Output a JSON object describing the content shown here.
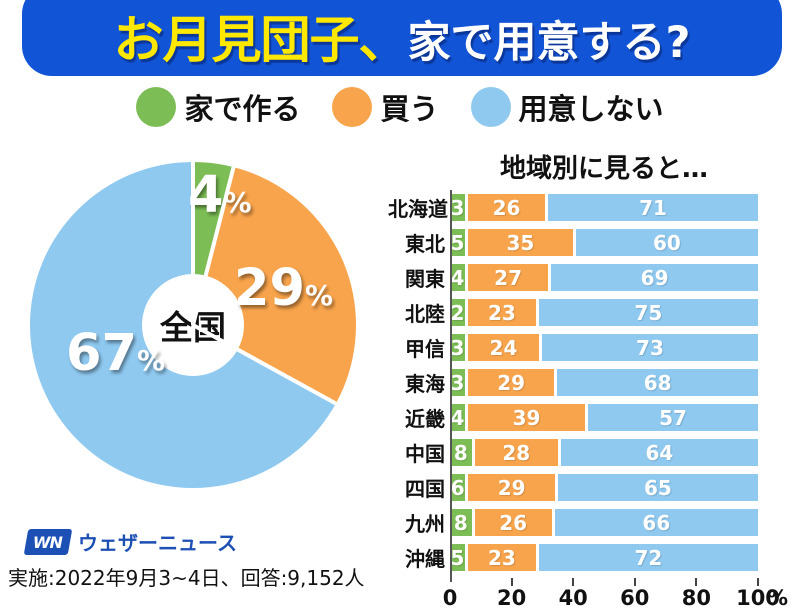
{
  "title": {
    "highlight": "お月見団子、",
    "rest": "家で用意する?"
  },
  "legend": [
    {
      "label": "家で作る",
      "color": "#7CBE55"
    },
    {
      "label": "買う",
      "color": "#F8A44C"
    },
    {
      "label": "用意しない",
      "color": "#8FC9F0"
    }
  ],
  "pie_center_label": "全国",
  "chart_data": [
    {
      "type": "pie",
      "title": "全国",
      "labels": [
        "家で作る",
        "買う",
        "用意しない"
      ],
      "values": [
        4,
        29,
        67
      ],
      "unit": "%",
      "colors": [
        "#7CBE55",
        "#F8A44C",
        "#8FC9F0"
      ],
      "donut": true,
      "start_angle_deg": 0
    },
    {
      "type": "bar",
      "subtype": "horizontal-stacked",
      "title": "地域別に見ると…",
      "categories": [
        "北海道",
        "東北",
        "関東",
        "北陸",
        "甲信",
        "東海",
        "近畿",
        "中国",
        "四国",
        "九州",
        "沖縄"
      ],
      "series": [
        {
          "name": "家で作る",
          "color": "#7CBE55",
          "values": [
            3,
            5,
            4,
            2,
            3,
            3,
            4,
            8,
            6,
            8,
            5
          ]
        },
        {
          "name": "買う",
          "color": "#F8A44C",
          "values": [
            26,
            35,
            27,
            23,
            24,
            29,
            39,
            28,
            29,
            26,
            23
          ]
        },
        {
          "name": "用意しない",
          "color": "#8FC9F0",
          "values": [
            71,
            60,
            69,
            75,
            73,
            68,
            57,
            64,
            65,
            66,
            72
          ]
        }
      ],
      "xlim": [
        0,
        100
      ],
      "x_ticks": [
        0,
        20,
        40,
        60,
        80,
        100
      ],
      "unit": "%"
    }
  ],
  "footer": {
    "logo_mark": "WN",
    "logo_text": "ウェザーニュース",
    "survey_note": "実施:2022年9月3~4日、回答:9,152人"
  }
}
